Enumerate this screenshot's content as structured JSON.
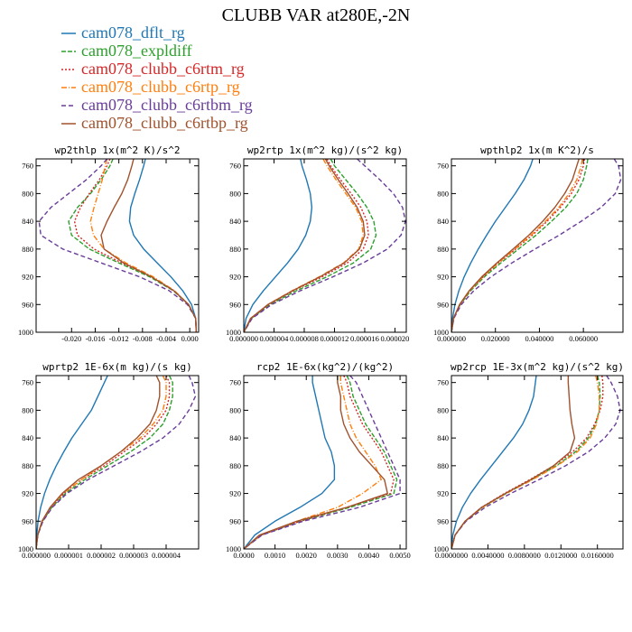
{
  "figure": {
    "title": "CLUBB VAR at280E,-2N"
  },
  "legend": [
    {
      "name": "cam078_dflt_rg",
      "color": "#1f77b4",
      "dash": ""
    },
    {
      "name": "cam078_expldiff",
      "color": "#2ca02c",
      "dash": "5,2"
    },
    {
      "name": "cam078_clubb_c6rtm_rg",
      "color": "#d62728",
      "dash": "2,2"
    },
    {
      "name": "cam078_clubb_c6rtp_rg",
      "color": "#ff7f0e",
      "dash": "6,2,1,2"
    },
    {
      "name": "cam078_clubb_c6rtbm_rg",
      "color": "#6a3d9a",
      "dash": "5,3"
    },
    {
      "name": "cam078_clubb_c6rtbp_rg",
      "color": "#a0522d",
      "dash": ""
    }
  ],
  "chart_data": [
    {
      "type": "line",
      "title": "wp2thlp  1x(m^2 K)/s^2",
      "xlim": [
        -0.026,
        0.0015
      ],
      "ylim": [
        1000,
        750
      ],
      "yticks": [
        1000,
        960,
        920,
        880,
        840,
        800,
        760
      ],
      "xticks": [
        -0.02,
        -0.016,
        -0.012,
        -0.008,
        -0.004,
        0.0
      ],
      "xtick_labels": [
        "-0.020",
        "-0.016",
        "-0.012",
        "-0.008",
        "-0.004",
        "0.000"
      ],
      "p": [
        750,
        760,
        780,
        800,
        820,
        840,
        860,
        880,
        900,
        920,
        940,
        960,
        980,
        1000
      ],
      "series": [
        {
          "name": "cam078_dflt_rg",
          "values": [
            -0.0075,
            -0.0078,
            -0.0085,
            -0.0093,
            -0.01,
            -0.0102,
            -0.0095,
            -0.0078,
            -0.0055,
            -0.0032,
            -0.0012,
            0.0003,
            0.001,
            0.0011
          ]
        },
        {
          "name": "cam078_expldiff",
          "values": [
            -0.013,
            -0.0135,
            -0.015,
            -0.0168,
            -0.019,
            -0.0205,
            -0.02,
            -0.017,
            -0.012,
            -0.0068,
            -0.0028,
            -0.0002,
            0.001,
            0.0011
          ]
        },
        {
          "name": "cam078_clubb_c6rtm_rg",
          "values": [
            -0.0135,
            -0.014,
            -0.0153,
            -0.017,
            -0.0185,
            -0.0195,
            -0.019,
            -0.0162,
            -0.0115,
            -0.0065,
            -0.0027,
            -0.0002,
            0.001,
            0.0011
          ]
        },
        {
          "name": "cam078_clubb_c6rtp_rg",
          "values": [
            -0.014,
            -0.0143,
            -0.0148,
            -0.0155,
            -0.0162,
            -0.0168,
            -0.0163,
            -0.0145,
            -0.0108,
            -0.0062,
            -0.0026,
            -0.0002,
            0.001,
            0.0011
          ]
        },
        {
          "name": "cam078_clubb_c6rtbm_rg",
          "values": [
            -0.014,
            -0.015,
            -0.0175,
            -0.0205,
            -0.0235,
            -0.0255,
            -0.0252,
            -0.0215,
            -0.015,
            -0.0085,
            -0.0035,
            -0.0004,
            0.001,
            0.0011
          ]
        },
        {
          "name": "cam078_clubb_c6rtbp_rg",
          "values": [
            -0.0095,
            -0.0098,
            -0.0105,
            -0.0115,
            -0.0128,
            -0.014,
            -0.015,
            -0.0145,
            -0.0112,
            -0.0065,
            -0.0027,
            -0.0002,
            0.001,
            0.0011
          ]
        }
      ]
    },
    {
      "type": "line",
      "title": "wp2rtp  1x(m^2 kg)/(s^2 kg)",
      "xlim": [
        0,
        2.15e-05
      ],
      "ylim": [
        1000,
        750
      ],
      "yticks": [
        1000,
        960,
        920,
        880,
        840,
        800,
        760
      ],
      "xticks": [
        0,
        4e-06,
        8e-06,
        1.2e-05,
        1.6e-05,
        2e-05
      ],
      "xtick_labels": [
        "0.000000",
        "0.000004",
        "0.000008",
        "0.000012",
        "0.000016",
        "0.000020"
      ],
      "p": [
        750,
        760,
        780,
        800,
        820,
        840,
        860,
        880,
        900,
        920,
        940,
        960,
        980,
        1000
      ],
      "series": [
        {
          "name": "cam078_dflt_rg",
          "values": [
            7.5e-06,
            7.7e-06,
            8.3e-06,
            8.8e-06,
            9e-06,
            8.8e-06,
            8.2e-06,
            7.2e-06,
            5.8e-06,
            4.2e-06,
            2.6e-06,
            1.2e-06,
            3e-07,
            0.0
          ]
        },
        {
          "name": "cam078_expldiff",
          "values": [
            1.15e-05,
            1.2e-05,
            1.35e-05,
            1.5e-05,
            1.63e-05,
            1.72e-05,
            1.75e-05,
            1.68e-05,
            1.45e-05,
            1.1e-05,
            7e-06,
            3.5e-06,
            1e-06,
            0.0
          ]
        },
        {
          "name": "cam078_clubb_c6rtm_rg",
          "values": [
            1.1e-05,
            1.15e-05,
            1.28e-05,
            1.42e-05,
            1.55e-05,
            1.63e-05,
            1.65e-05,
            1.58e-05,
            1.37e-05,
            1.04e-05,
            6.6e-06,
            3.3e-06,
            1e-06,
            0.0
          ]
        },
        {
          "name": "cam078_clubb_c6rtp_rg",
          "values": [
            1.05e-05,
            1.1e-05,
            1.22e-05,
            1.35e-05,
            1.48e-05,
            1.56e-05,
            1.58e-05,
            1.52e-05,
            1.32e-05,
            1e-05,
            6.4e-06,
            3.2e-06,
            9e-07,
            0.0
          ]
        },
        {
          "name": "cam078_clubb_c6rtbm_rg",
          "values": [
            1.5e-05,
            1.6e-05,
            1.8e-05,
            1.98e-05,
            2.1e-05,
            2.14e-05,
            2.08e-05,
            1.9e-05,
            1.58e-05,
            1.18e-05,
            7.5e-06,
            3.7e-06,
            1.1e-06,
            0.0
          ]
        },
        {
          "name": "cam078_clubb_c6rtbp_rg",
          "values": [
            1.08e-05,
            1.13e-05,
            1.25e-05,
            1.38e-05,
            1.5e-05,
            1.58e-05,
            1.6e-05,
            1.53e-05,
            1.33e-05,
            1.01e-05,
            6.5e-06,
            3.2e-06,
            9e-07,
            0.0
          ]
        }
      ]
    },
    {
      "type": "line",
      "title": "wpthlp2  1x(m K^2)/s",
      "xlim": [
        0,
        0.078
      ],
      "ylim": [
        1000,
        750
      ],
      "yticks": [
        1000,
        960,
        920,
        880,
        840,
        800,
        760
      ],
      "xticks": [
        0,
        0.02,
        0.04,
        0.06
      ],
      "xtick_labels": [
        "0.000000",
        "0.020000",
        "0.040000",
        "0.060000"
      ],
      "p": [
        750,
        760,
        780,
        800,
        820,
        840,
        860,
        880,
        900,
        920,
        940,
        960,
        980,
        1000
      ],
      "series": [
        {
          "name": "cam078_dflt_rg",
          "values": [
            0.037,
            0.036,
            0.033,
            0.029,
            0.0245,
            0.02,
            0.016,
            0.0122,
            0.0088,
            0.0058,
            0.0034,
            0.0016,
            0.0005,
            0.0
          ]
        },
        {
          "name": "cam078_expldiff",
          "values": [
            0.062,
            0.0615,
            0.06,
            0.057,
            0.052,
            0.0455,
            0.0385,
            0.0305,
            0.0225,
            0.015,
            0.0088,
            0.004,
            0.001,
            0.0
          ]
        },
        {
          "name": "cam078_clubb_c6rtm_rg",
          "values": [
            0.0605,
            0.06,
            0.058,
            0.0545,
            0.0495,
            0.0435,
            0.0368,
            0.0292,
            0.0215,
            0.0144,
            0.0084,
            0.0038,
            0.001,
            0.0
          ]
        },
        {
          "name": "cam078_clubb_c6rtp_rg",
          "values": [
            0.0595,
            0.059,
            0.057,
            0.0535,
            0.0488,
            0.0428,
            0.0362,
            0.0288,
            0.0212,
            0.0142,
            0.0083,
            0.0038,
            0.001,
            0.0
          ]
        },
        {
          "name": "cam078_clubb_c6rtbm_rg",
          "values": [
            0.074,
            0.076,
            0.077,
            0.0745,
            0.068,
            0.059,
            0.049,
            0.038,
            0.0275,
            0.018,
            0.0102,
            0.0045,
            0.0011,
            0.0
          ]
        },
        {
          "name": "cam078_clubb_c6rtbp_rg",
          "values": [
            0.058,
            0.057,
            0.055,
            0.0515,
            0.047,
            0.0415,
            0.0352,
            0.028,
            0.0207,
            0.0138,
            0.0081,
            0.0037,
            0.0009,
            0.0
          ]
        }
      ]
    },
    {
      "type": "line",
      "title": "wprtp2  1E-6x(m kg)/(s kg)",
      "xlim": [
        0,
        5e-06
      ],
      "ylim": [
        1000,
        750
      ],
      "yticks": [
        1000,
        960,
        920,
        880,
        840,
        800,
        760
      ],
      "xticks": [
        0,
        1e-06,
        2e-06,
        3e-06,
        4e-06
      ],
      "xtick_labels": [
        "0.000000",
        "0.000001",
        "0.000002",
        "0.000003",
        "0.000004"
      ],
      "p": [
        750,
        760,
        780,
        800,
        820,
        840,
        860,
        880,
        900,
        920,
        940,
        960,
        980,
        1000
      ],
      "series": [
        {
          "name": "cam078_dflt_rg",
          "values": [
            2.2e-06,
            2.1e-06,
            1.9e-06,
            1.7e-06,
            1.4e-06,
            1.1e-06,
            8.5e-07,
            6.2e-07,
            4.2e-07,
            2.6e-07,
            1.4e-07,
            6e-08,
            2e-08,
            0.0
          ]
        },
        {
          "name": "cam078_expldiff",
          "values": [
            4.1e-06,
            4.2e-06,
            4.2e-06,
            4.1e-06,
            3.9e-06,
            3.5e-06,
            2.9e-06,
            2.2e-06,
            1.5e-06,
            9e-07,
            4.8e-07,
            2e-07,
            5e-08,
            0.0
          ]
        },
        {
          "name": "cam078_clubb_c6rtm_rg",
          "values": [
            4e-06,
            4.1e-06,
            4.1e-06,
            4e-06,
            3.7e-06,
            3.3e-06,
            2.7e-06,
            2.1e-06,
            1.4e-06,
            8.5e-07,
            4.5e-07,
            1.9e-07,
            5e-08,
            0.0
          ]
        },
        {
          "name": "cam078_clubb_c6rtp_rg",
          "values": [
            3.9e-06,
            4e-06,
            4e-06,
            3.9e-06,
            3.6e-06,
            3.2e-06,
            2.6e-06,
            2e-06,
            1.4e-06,
            8.2e-07,
            4.4e-07,
            1.8e-07,
            5e-08,
            0.0
          ]
        },
        {
          "name": "cam078_clubb_c6rtbm_rg",
          "values": [
            4.7e-06,
            4.8e-06,
            4.9e-06,
            4.7e-06,
            4.4e-06,
            3.9e-06,
            3.2e-06,
            2.4e-06,
            1.6e-06,
            9.5e-07,
            5e-07,
            2.1e-07,
            5e-08,
            0.0
          ]
        },
        {
          "name": "cam078_clubb_c6rtbp_rg",
          "values": [
            3.7e-06,
            3.8e-06,
            3.8e-06,
            3.7e-06,
            3.5e-06,
            3.1e-06,
            2.6e-06,
            2e-06,
            1.3e-06,
            8e-07,
            4.3e-07,
            1.8e-07,
            5e-08,
            0.0
          ]
        }
      ]
    },
    {
      "type": "line",
      "title": "rcp2  1E-6x(kg^2)/(kg^2)",
      "xlim": [
        0,
        0.0052
      ],
      "ylim": [
        1000,
        750
      ],
      "yticks": [
        1000,
        960,
        920,
        880,
        840,
        800,
        760
      ],
      "xticks": [
        0,
        0.001,
        0.002,
        0.003,
        0.004,
        0.005
      ],
      "xtick_labels": [
        "0.0000",
        "0.0010",
        "0.0020",
        "0.0030",
        "0.0040",
        "0.0050"
      ],
      "p": [
        750,
        760,
        780,
        800,
        820,
        840,
        860,
        880,
        900,
        920,
        940,
        960,
        980,
        1000
      ],
      "series": [
        {
          "name": "cam078_dflt_rg",
          "values": [
            0.0022,
            0.0022,
            0.0023,
            0.0024,
            0.0025,
            0.0026,
            0.0028,
            0.0029,
            0.0029,
            0.0025,
            0.0018,
            0.001,
            0.00035,
            0.0
          ]
        },
        {
          "name": "cam078_expldiff",
          "values": [
            0.0033,
            0.0034,
            0.0035,
            0.0037,
            0.0039,
            0.0042,
            0.0045,
            0.0047,
            0.0049,
            0.0048,
            0.0034,
            0.0018,
            0.00055,
            0.0
          ]
        },
        {
          "name": "cam078_clubb_c6rtm_rg",
          "values": [
            0.0032,
            0.0033,
            0.0034,
            0.0036,
            0.0038,
            0.0041,
            0.0044,
            0.0046,
            0.0048,
            0.0047,
            0.0033,
            0.0018,
            0.00055,
            0.0
          ]
        },
        {
          "name": "cam078_clubb_c6rtp_rg",
          "values": [
            0.0031,
            0.0031,
            0.0032,
            0.0033,
            0.0034,
            0.0036,
            0.0039,
            0.0042,
            0.0044,
            0.0038,
            0.003,
            0.0017,
            0.00052,
            0.0
          ]
        },
        {
          "name": "cam078_clubb_c6rtbm_rg",
          "values": [
            0.0034,
            0.0036,
            0.0038,
            0.004,
            0.0042,
            0.0044,
            0.0046,
            0.0048,
            0.005,
            0.005,
            0.0037,
            0.0019,
            0.00058,
            0.0
          ]
        },
        {
          "name": "cam078_clubb_c6rtbp_rg",
          "values": [
            0.003,
            0.003,
            0.0031,
            0.0031,
            0.0032,
            0.0034,
            0.0037,
            0.0041,
            0.0045,
            0.0046,
            0.0033,
            0.0017,
            0.0005,
            0.0
          ]
        }
      ]
    },
    {
      "type": "line",
      "title": "wp2rcp  1E-3x(m^2 kg)/(s^2 kg)",
      "xlim": [
        0,
        0.0188
      ],
      "ylim": [
        1000,
        750
      ],
      "yticks": [
        1000,
        960,
        920,
        880,
        840,
        800,
        760
      ],
      "xticks": [
        0,
        0.004,
        0.008,
        0.012,
        0.016
      ],
      "xtick_labels": [
        "0.0000000",
        "0.0040000",
        "0.0080000",
        "0.0120000",
        "0.0160000"
      ],
      "p": [
        750,
        760,
        780,
        800,
        820,
        840,
        860,
        880,
        900,
        920,
        940,
        960,
        980,
        1000
      ],
      "series": [
        {
          "name": "cam078_dflt_rg",
          "values": [
            0.0093,
            0.0092,
            0.009,
            0.0085,
            0.0078,
            0.0068,
            0.0056,
            0.0044,
            0.0032,
            0.0021,
            0.0012,
            0.00055,
            0.00015,
            0.0
          ]
        },
        {
          "name": "cam078_expldiff",
          "values": [
            0.016,
            0.0162,
            0.0163,
            0.0162,
            0.0158,
            0.015,
            0.0136,
            0.0115,
            0.0088,
            0.006,
            0.0034,
            0.0015,
            0.0004,
            0.0
          ]
        },
        {
          "name": "cam078_clubb_c6rtm_rg",
          "values": [
            0.0165,
            0.0166,
            0.0166,
            0.0163,
            0.0157,
            0.0148,
            0.0133,
            0.0112,
            0.0086,
            0.0058,
            0.0033,
            0.0015,
            0.0004,
            0.0
          ]
        },
        {
          "name": "cam078_clubb_c6rtp_rg",
          "values": [
            0.0158,
            0.016,
            0.0162,
            0.0162,
            0.0159,
            0.0152,
            0.0138,
            0.0116,
            0.0089,
            0.006,
            0.0034,
            0.0015,
            0.0004,
            0.0
          ]
        },
        {
          "name": "cam078_clubb_c6rtbm_rg",
          "values": [
            0.017,
            0.0175,
            0.0182,
            0.0185,
            0.018,
            0.0168,
            0.015,
            0.0125,
            0.0096,
            0.0065,
            0.0037,
            0.0016,
            0.0004,
            0.0
          ]
        },
        {
          "name": "cam078_clubb_c6rtbp_rg",
          "values": [
            0.0128,
            0.0128,
            0.0129,
            0.013,
            0.0132,
            0.0135,
            0.013,
            0.0112,
            0.0087,
            0.0059,
            0.0033,
            0.0015,
            0.0004,
            0.0
          ]
        }
      ]
    }
  ]
}
